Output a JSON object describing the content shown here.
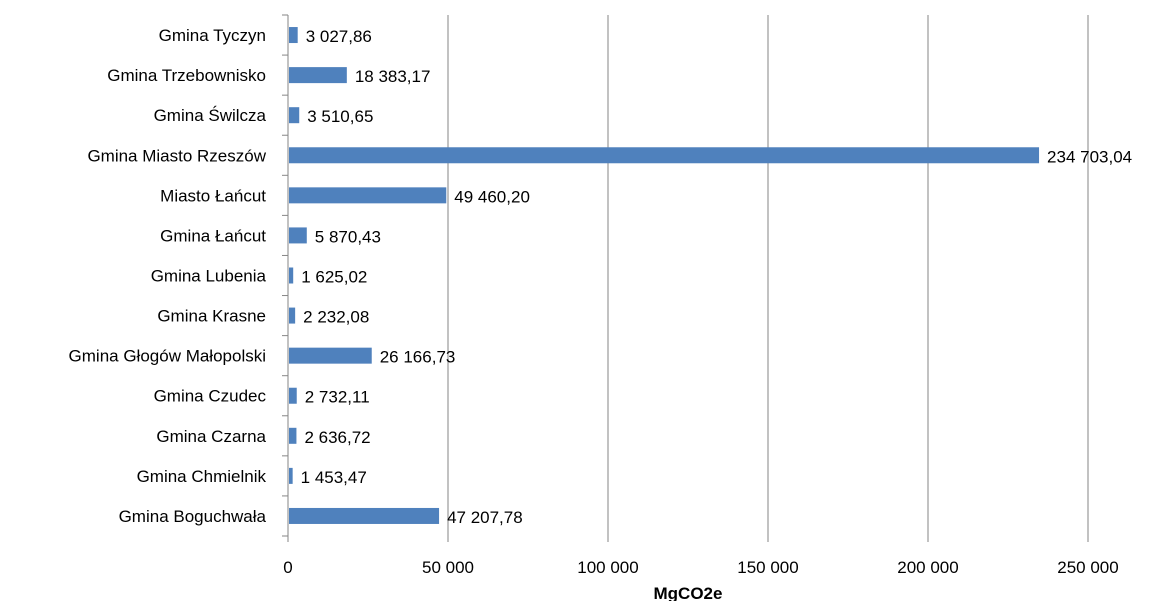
{
  "chart_data": {
    "type": "bar",
    "orientation": "horizontal",
    "categories": [
      "Gmina Tyczyn",
      "Gmina Trzebownisko",
      "Gmina Świlcza",
      "Gmina Miasto Rzeszów",
      "Miasto Łańcut",
      "Gmina Łańcut",
      "Gmina Lubenia",
      "Gmina Krasne",
      "Gmina Głogów Małopolski",
      "Gmina Czudec",
      "Gmina Czarna",
      "Gmina Chmielnik",
      "Gmina Boguchwała"
    ],
    "values": [
      3027.86,
      18383.17,
      3510.65,
      234703.04,
      49460.2,
      5870.43,
      1625.02,
      2232.08,
      26166.73,
      2732.11,
      2636.72,
      1453.47,
      47207.78
    ],
    "value_labels": [
      "3 027,86",
      "18 383,17",
      "3 510,65",
      "234 703,04",
      "49 460,20",
      "5 870,43",
      "1 625,02",
      "2 232,08",
      "26 166,73",
      "2 732,11",
      "2 636,72",
      "1 453,47",
      "47 207,78"
    ],
    "xlim": [
      0,
      250000
    ],
    "x_ticks": [
      0,
      50000,
      100000,
      150000,
      200000,
      250000
    ],
    "x_tick_labels": [
      "0",
      "50 000",
      "100 000",
      "150 000",
      "200 000",
      "250 000"
    ],
    "xlabel": "MgCO2e",
    "ylabel": "",
    "title": "",
    "grid": "vertical",
    "legend": "none",
    "bar_color": "#4f81bd",
    "grid_color": "#868686"
  }
}
